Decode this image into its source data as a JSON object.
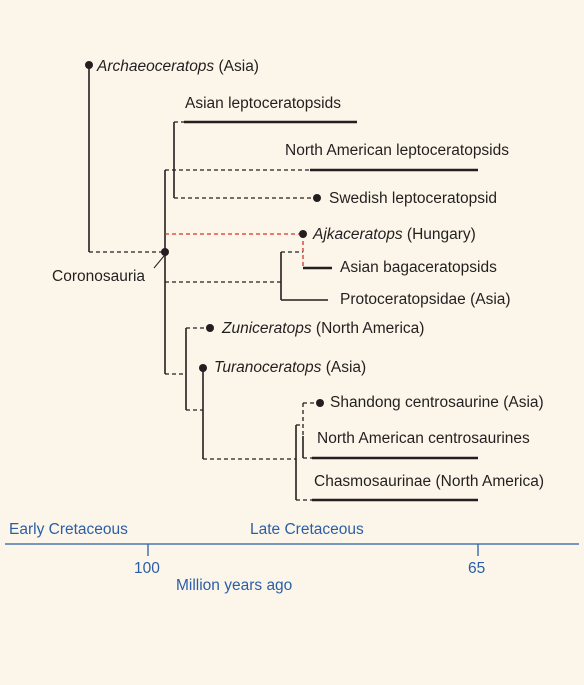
{
  "taxa": {
    "archaeoceratops": {
      "name": "Archaeoceratops",
      "region": " (Asia)"
    },
    "asian_lepto": {
      "label": "Asian leptoceratopsids"
    },
    "na_lepto": {
      "label": "North American leptoceratopsids"
    },
    "swedish_lepto": {
      "label": "Swedish leptoceratopsid"
    },
    "ajkaceratops": {
      "name": "Ajkaceratops",
      "region": " (Hungary)"
    },
    "asian_bagacera": {
      "label": "Asian bagaceratopsids"
    },
    "protoceratopsidae": {
      "label": "Protoceratopsidae (Asia)"
    },
    "zuniceratops": {
      "name": "Zuniceratops",
      "region": " (North America)"
    },
    "turanoceratops": {
      "name": "Turanoceratops",
      "region": " (Asia)"
    },
    "shandong": {
      "label": "Shandong centrosaurine (Asia)"
    },
    "na_centro": {
      "label": "North American centrosaurines"
    },
    "chasmosaurinae": {
      "label": "Chasmosaurinae (North America)"
    }
  },
  "node_labels": {
    "coronosauria": "Coronosauria"
  },
  "timescale": {
    "early": "Early Cretaceous",
    "late": "Late Cretaceous",
    "tick_100": "100",
    "tick_65": "65",
    "axis_title": "Million years ago"
  },
  "colors": {
    "background": "#fbf6e9",
    "line": "#231f20",
    "highlight": "#d6312b",
    "axis": "#2b5ea7"
  }
}
